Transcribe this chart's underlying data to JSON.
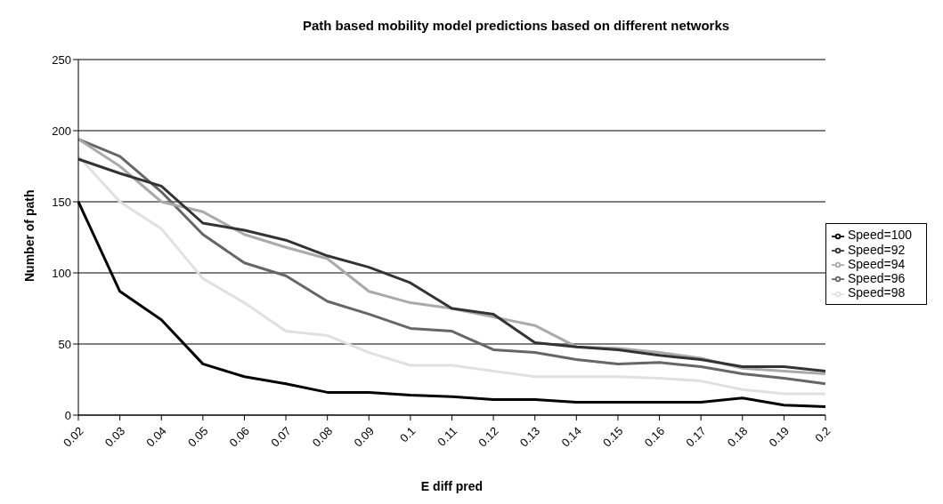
{
  "chart_data": {
    "type": "line",
    "title": "Path based mobility model predictions based on different networks",
    "xlabel": "E diff pred",
    "ylabel": "Number of  path",
    "categories": [
      "0.02",
      "0.03",
      "0.04",
      "0.05",
      "0.06",
      "0.07",
      "0.08",
      "0.09",
      "0.1",
      "0.11",
      "0.12",
      "0.13",
      "0.14",
      "0.15",
      "0.16",
      "0.17",
      "0.18",
      "0.19",
      "0.2"
    ],
    "series": [
      {
        "name": "Speed=100",
        "color": "#000000",
        "values": [
          150,
          87,
          67,
          36,
          27,
          22,
          16,
          16,
          14,
          13,
          11,
          11,
          9,
          9,
          9,
          9,
          12,
          7,
          6
        ]
      },
      {
        "name": "Speed=98",
        "color": "#e0e0e0",
        "values": [
          182,
          150,
          131,
          96,
          79,
          59,
          56,
          44,
          35,
          35,
          31,
          27,
          27,
          27,
          26,
          24,
          18,
          15,
          15
        ]
      },
      {
        "name": "Speed=96",
        "color": "#666666",
        "values": [
          194,
          182,
          157,
          127,
          107,
          98,
          80,
          71,
          61,
          59,
          46,
          44,
          39,
          36,
          37,
          34,
          29,
          26,
          22
        ]
      },
      {
        "name": "Speed=94",
        "color": "#aaaaaa",
        "values": [
          194,
          175,
          150,
          143,
          127,
          118,
          110,
          87,
          79,
          75,
          69,
          63,
          48,
          47,
          44,
          40,
          33,
          31,
          29
        ]
      },
      {
        "name": "Speed=92",
        "color": "#333333",
        "values": [
          180,
          170,
          161,
          135,
          130,
          123,
          112,
          104,
          93,
          75,
          71,
          51,
          48,
          46,
          42,
          39,
          34,
          34,
          31
        ]
      }
    ],
    "ylim": [
      0,
      250
    ],
    "yticks": [
      0,
      50,
      100,
      150,
      200,
      250
    ],
    "grid": "y",
    "legend": "right",
    "marker": "none",
    "line_style": "solid"
  }
}
